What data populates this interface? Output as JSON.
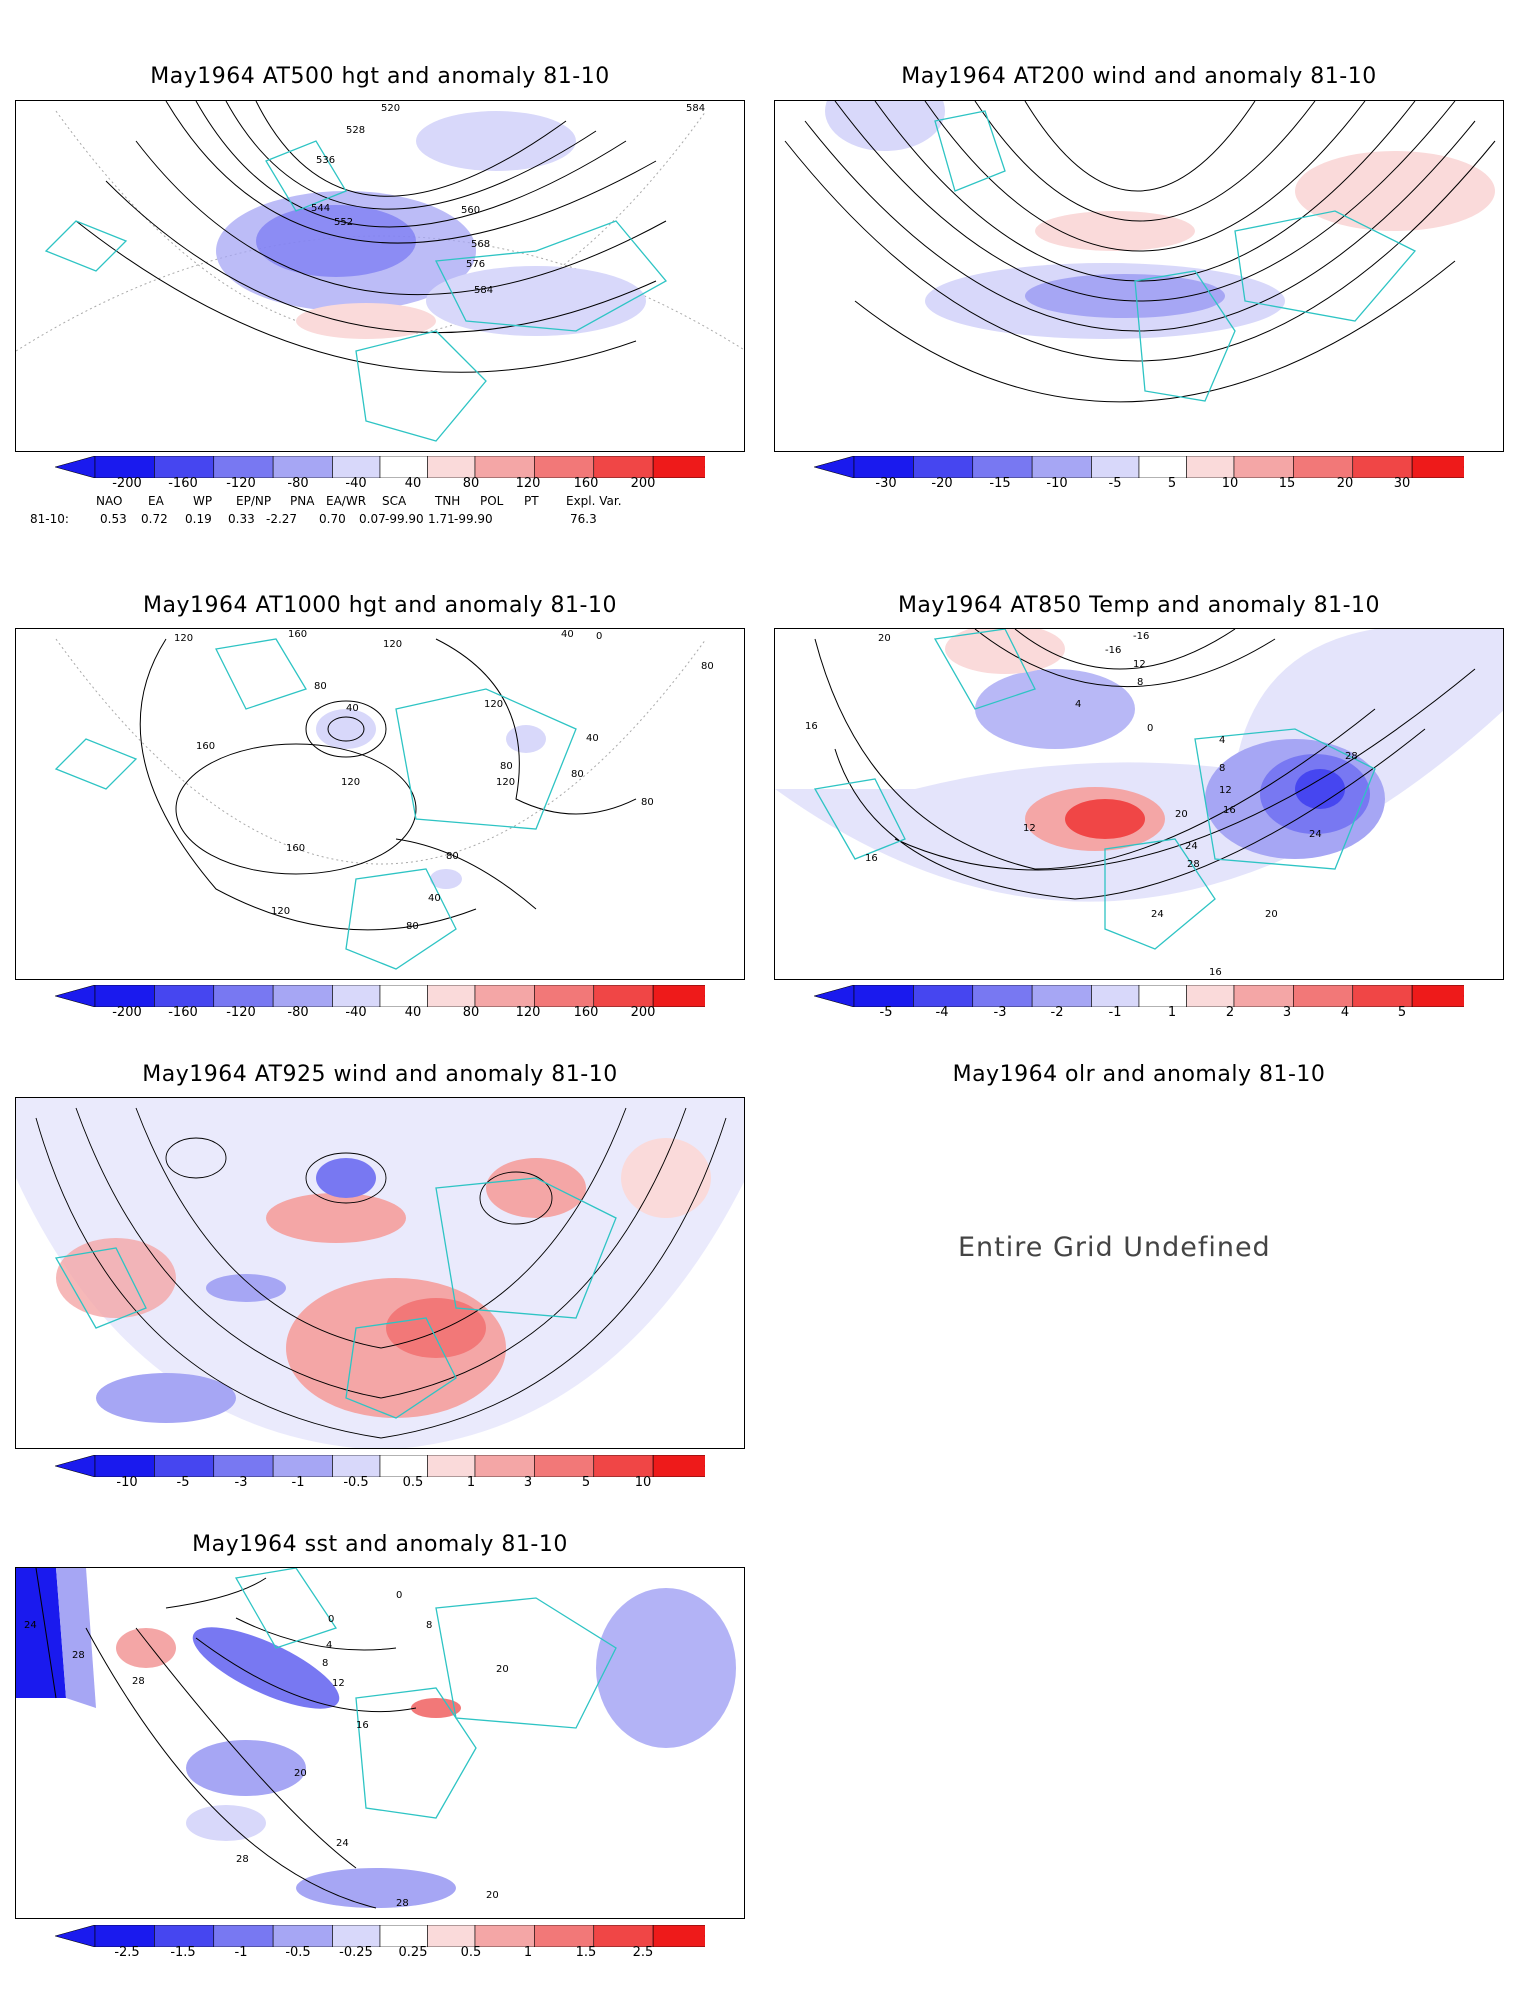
{
  "panels": [
    {
      "id": "p1",
      "title": "May1964 AT500 hgt and anomaly 81-10",
      "contour_labels": [
        "520",
        "528",
        "536",
        "544",
        "552",
        "560",
        "568",
        "576",
        "584",
        "584"
      ]
    },
    {
      "id": "p2",
      "title": "May1964 AT200 wind and anomaly 81-10",
      "contour_labels": []
    },
    {
      "id": "p3",
      "title": "May1964 AT1000 hgt and anomaly 81-10",
      "contour_labels": [
        "120",
        "160",
        "120",
        "80",
        "40",
        "120",
        "80",
        "120",
        "40",
        "80",
        "80",
        "160",
        "160",
        "120",
        "120",
        "80",
        "80",
        "40",
        "0",
        "80",
        "40"
      ]
    },
    {
      "id": "p4",
      "title": "May1964 AT850 Temp and anomaly 81-10",
      "contour_labels": [
        "20",
        "-16",
        "-16",
        "12",
        "8",
        "4",
        "0",
        "4",
        "8",
        "12",
        "16",
        "20",
        "24",
        "28",
        "24",
        "16",
        "16",
        "12",
        "24",
        "20",
        "16",
        "28"
      ]
    },
    {
      "id": "p5",
      "title": "May1964 AT925 wind and anomaly 81-10",
      "contour_labels": []
    },
    {
      "id": "p6",
      "title": "May1964 olr and anomaly 81-10",
      "undefined_text": "Entire Grid Undefined"
    },
    {
      "id": "p7",
      "title": "May1964 sst and anomaly 81-10",
      "contour_labels": [
        "24",
        "28",
        "28",
        "0",
        "4",
        "8",
        "12",
        "16",
        "20",
        "24",
        "28",
        "28",
        "0",
        "8",
        "20",
        "20"
      ]
    }
  ],
  "colorbars": {
    "hgt500": [
      "-200",
      "-160",
      "-120",
      "-80",
      "-40",
      "40",
      "80",
      "120",
      "160",
      "200"
    ],
    "wind200": [
      "-30",
      "-20",
      "-15",
      "-10",
      "-5",
      "5",
      "10",
      "15",
      "20",
      "30"
    ],
    "hgt1000": [
      "-200",
      "-160",
      "-120",
      "-80",
      "-40",
      "40",
      "80",
      "120",
      "160",
      "200"
    ],
    "temp850": [
      "-5",
      "-4",
      "-3",
      "-2",
      "-1",
      "1",
      "2",
      "3",
      "4",
      "5"
    ],
    "wind925": [
      "-10",
      "-5",
      "-3",
      "-1",
      "-0.5",
      "0.5",
      "1",
      "3",
      "5",
      "10"
    ],
    "sst": [
      "-2.5",
      "-1.5",
      "-1",
      "-0.5",
      "-0.25",
      "0.25",
      "0.5",
      "1",
      "1.5",
      "2.5"
    ]
  },
  "colors": {
    "negative": [
      "#1a1aee",
      "#4646f0",
      "#7878f2",
      "#a6a6f4",
      "#d8d8fa"
    ],
    "positive": [
      "#fadada",
      "#f4a6a6",
      "#f27878",
      "#f04646",
      "#ee1a1a"
    ],
    "coast": "#2ec4c4"
  },
  "telecon": {
    "headers": [
      "NAO",
      "EA",
      "WP",
      "EP/NP",
      "PNA",
      "EA/WR",
      "SCA",
      "TNH",
      "POL",
      "PT",
      "Expl. Var."
    ],
    "row_label": "81-10:",
    "values": [
      "0.53",
      "0.72",
      "0.19",
      "0.33",
      "-2.27",
      "0.70",
      "0.07",
      "-99.90",
      "1.71",
      "-99.90",
      "76.3"
    ]
  }
}
